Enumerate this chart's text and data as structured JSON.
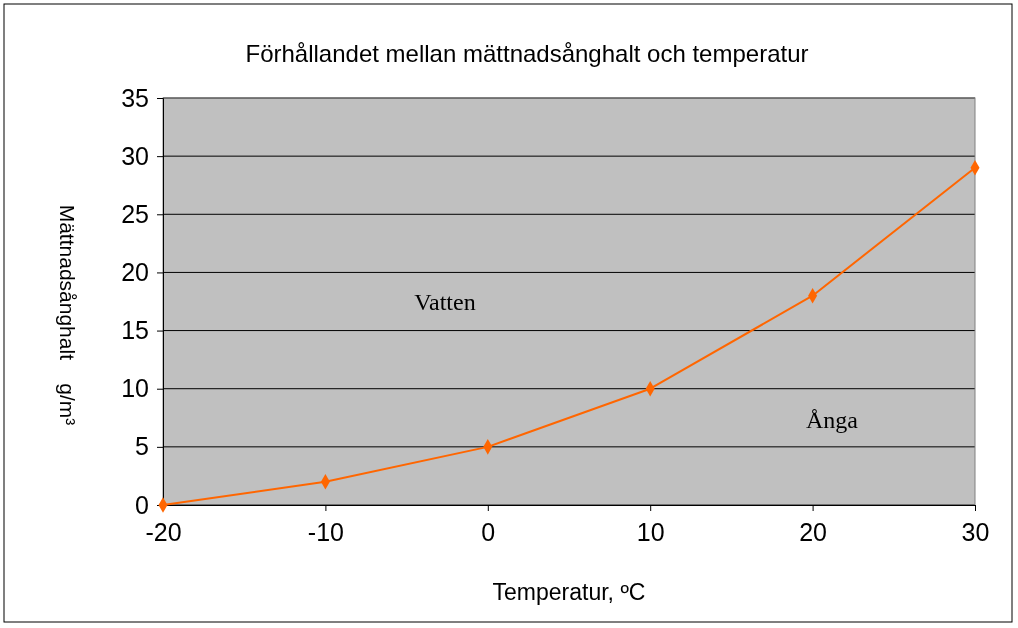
{
  "chart_data": {
    "type": "line",
    "title": "Förhållandet mellan mättnadsånghalt och temperatur",
    "xlabel": "Temperatur, ºC",
    "ylabel": "Mättnadsånghalt    g/m³",
    "x": [
      -20,
      -10,
      0,
      10,
      20,
      30
    ],
    "series": [
      {
        "color": "#ff6600",
        "values": [
          0,
          2,
          5,
          10,
          18,
          29
        ]
      }
    ],
    "xlim": [
      -20,
      30
    ],
    "xticks": [
      -20,
      -10,
      0,
      10,
      20,
      30
    ],
    "ylim": [
      0,
      35
    ],
    "yticks": [
      0,
      5,
      10,
      15,
      20,
      25,
      30,
      35
    ],
    "grid": "y",
    "marker": "diamond",
    "line_style": "solid",
    "annotations": [
      "Vatten",
      "Ånga"
    ]
  }
}
